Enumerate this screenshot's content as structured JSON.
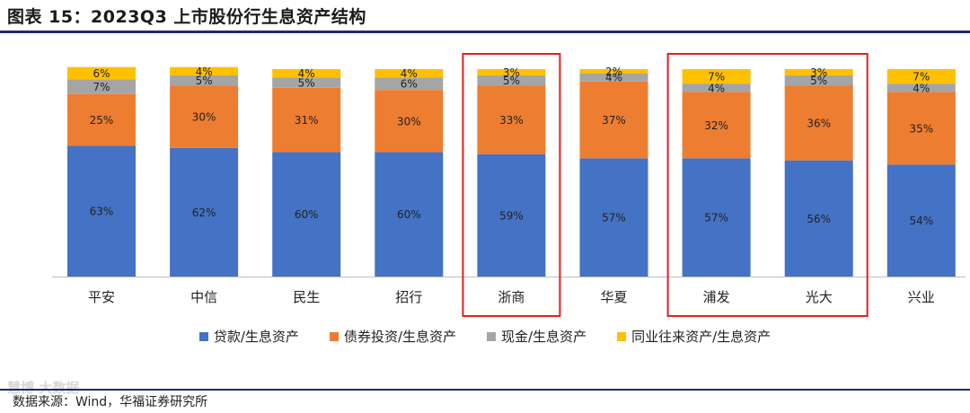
{
  "header": {
    "title": "图表 15：2023Q3 上市股份行生息资产结构"
  },
  "footer": {
    "source": "数据来源：Wind，华福证券研究所",
    "watermark": "慧博 大数据"
  },
  "colors": {
    "loans": "#4472c4",
    "bonds": "#ed7d31",
    "cash": "#a5a5a5",
    "interbank": "#ffc000",
    "highlight": "#e02020"
  },
  "chart_data": {
    "type": "bar",
    "stacked": true,
    "categories": [
      "平安",
      "中信",
      "民生",
      "招行",
      "浙商",
      "华夏",
      "浦发",
      "光大",
      "兴业"
    ],
    "series": [
      {
        "name": "贷款/生息资产",
        "values": [
          63,
          62,
          60,
          60,
          59,
          57,
          57,
          56,
          54
        ],
        "labels": [
          "63%",
          "62%",
          "60%",
          "60%",
          "59%",
          "57%",
          "57%",
          "56%",
          "54%"
        ]
      },
      {
        "name": "债券投资/生息资产",
        "values": [
          25,
          30,
          31,
          30,
          33,
          37,
          32,
          36,
          35
        ],
        "labels": [
          "25%",
          "30%",
          "31%",
          "30%",
          "33%",
          "37%",
          "32%",
          "36%",
          "35%"
        ]
      },
      {
        "name": "现金/生息资产",
        "values": [
          7,
          5,
          5,
          6,
          5,
          4,
          4,
          5,
          4
        ],
        "labels": [
          "7%",
          "5%",
          "5%",
          "6%",
          "5%",
          "4%",
          "4%",
          "5%",
          "4%"
        ]
      },
      {
        "name": "同业往来资产/生息资产",
        "values": [
          6,
          4,
          4,
          4,
          3,
          2,
          7,
          3,
          7
        ],
        "labels": [
          "6%",
          "4%",
          "4%",
          "4%",
          "3%",
          "2%",
          "7%",
          "3%",
          "7%"
        ]
      }
    ],
    "ylim": [
      0,
      100
    ],
    "legend_position": "bottom",
    "highlighted_categories": [
      [
        "浙商"
      ],
      [
        "浦发",
        "光大"
      ]
    ]
  }
}
